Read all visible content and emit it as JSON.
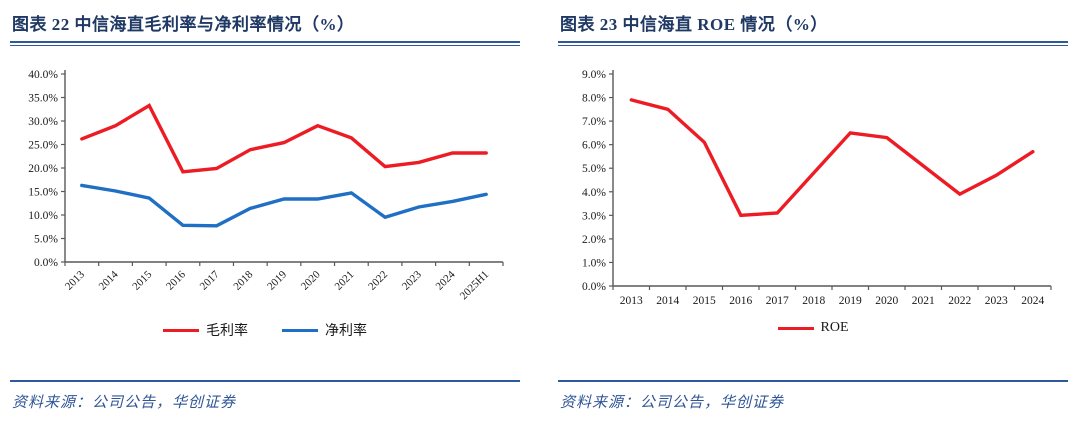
{
  "colors": {
    "title_navy": "#1F3864",
    "rule_blue": "#2E5A9C",
    "source_blue": "#2F5597",
    "series_red": "#ED1C24",
    "series_blue": "#1F6FC5",
    "axis_gray": "#595959",
    "tick_text": "#1A1A1A"
  },
  "panels": [
    {
      "title": "图表 22  中信海直毛利率与净利率情况（%）",
      "source": "资料来源：公司公告，华创证券"
    },
    {
      "title": "图表 23  中信海直 ROE 情况（%）",
      "source": "资料来源：公司公告，华创证券"
    }
  ],
  "chart_data": [
    {
      "type": "line",
      "title": "中信海直毛利率与净利率情况（%）",
      "categories": [
        "2013",
        "2014",
        "2015",
        "2016",
        "2017",
        "2018",
        "2019",
        "2020",
        "2021",
        "2022",
        "2023",
        "2024",
        "2025H1"
      ],
      "series": [
        {
          "name": "毛利率",
          "color": "#ED1C24",
          "values": [
            26.2,
            29.0,
            33.3,
            19.2,
            19.9,
            23.9,
            25.4,
            29.0,
            26.4,
            20.3,
            21.2,
            23.2,
            23.2
          ]
        },
        {
          "name": "净利率",
          "color": "#1F6FC5",
          "values": [
            16.3,
            15.1,
            13.6,
            7.8,
            7.7,
            11.4,
            13.4,
            13.4,
            14.7,
            9.5,
            11.7,
            12.9,
            14.4
          ]
        }
      ],
      "xlabel": "",
      "ylabel": "",
      "ylim": [
        0,
        40
      ],
      "ytick_step": 5,
      "ytick_format": "percent1",
      "grid": false,
      "legend_position": "bottom",
      "x_label_rotation": -45
    },
    {
      "type": "line",
      "title": "中信海直 ROE 情况（%）",
      "categories": [
        "2013",
        "2014",
        "2015",
        "2016",
        "2017",
        "2018",
        "2019",
        "2020",
        "2021",
        "2022",
        "2023",
        "2024"
      ],
      "series": [
        {
          "name": "ROE",
          "color": "#ED1C24",
          "values": [
            7.9,
            7.5,
            6.1,
            3.0,
            3.1,
            4.8,
            6.5,
            6.3,
            5.1,
            3.9,
            4.7,
            5.7
          ]
        }
      ],
      "xlabel": "",
      "ylabel": "",
      "ylim": [
        0,
        9
      ],
      "ytick_step": 1,
      "ytick_format": "percent1",
      "grid": false,
      "legend_position": "bottom",
      "x_label_rotation": 0
    }
  ]
}
